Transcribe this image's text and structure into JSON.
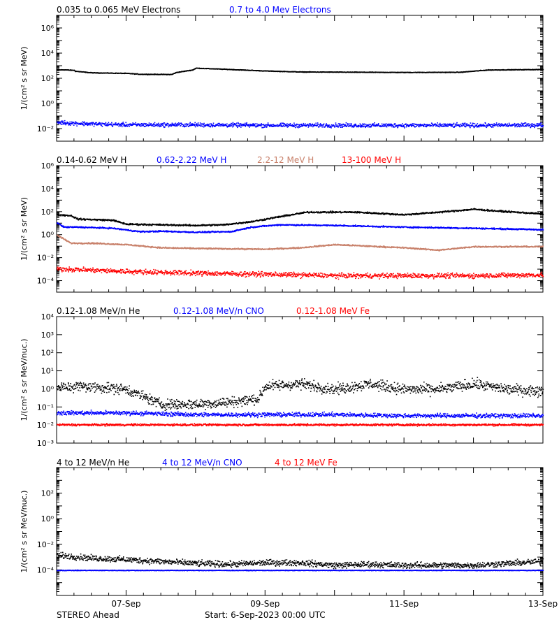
{
  "footer": {
    "left": "STEREO Ahead",
    "start": "Start:  6-Sep-2023 00:00 UTC"
  },
  "colors": {
    "black": "#000000",
    "blue": "#0000ff",
    "tan": "#c8806a",
    "red": "#ff0000"
  },
  "chart_data": [
    {
      "type": "scatter",
      "log_y": true,
      "ylabel": "1/(cm² s sr MeV)",
      "ylim": [
        0.001,
        10000000
      ],
      "yticks": [
        {
          "v": 0.01,
          "label": "10⁻²"
        },
        {
          "v": 1,
          "label": "10⁰"
        },
        {
          "v": 100,
          "label": "10²"
        },
        {
          "v": 10000,
          "label": "10⁴"
        },
        {
          "v": 1000000,
          "label": "10⁶"
        }
      ],
      "series": [
        {
          "name": "0.035 to 0.065 MeV Electrons",
          "color": "#000000",
          "scatter": 0.02,
          "x": [
            0,
            0.1,
            0.25,
            0.26,
            0.5,
            1,
            1.2,
            1.65,
            1.72,
            1.95,
            2.0,
            2.5,
            3.0,
            3.5,
            5,
            5.8,
            6.2,
            7
          ],
          "y": [
            500,
            520,
            470,
            400,
            300,
            270,
            230,
            220,
            320,
            500,
            700,
            550,
            420,
            350,
            320,
            330,
            500,
            550
          ]
        },
        {
          "name": "0.7 to 4.0 Mev Electrons",
          "color": "#0000ff",
          "scatter": 0.14,
          "x": [
            0,
            0.2,
            0.6,
            1,
            2,
            3,
            4,
            5,
            6,
            7
          ],
          "y": [
            0.035,
            0.03,
            0.025,
            0.022,
            0.022,
            0.02,
            0.02,
            0.02,
            0.02,
            0.021
          ]
        }
      ]
    },
    {
      "type": "scatter",
      "log_y": true,
      "ylabel": "1/(cm² s sr MeV)",
      "ylim": [
        1e-05,
        1000000
      ],
      "yticks": [
        {
          "v": 0.0001,
          "label": "10⁻⁴"
        },
        {
          "v": 0.01,
          "label": "10⁻²"
        },
        {
          "v": 1,
          "label": "10⁰"
        },
        {
          "v": 100,
          "label": "10²"
        },
        {
          "v": 10000,
          "label": "10⁴"
        },
        {
          "v": 1000000,
          "label": "10⁶"
        }
      ],
      "series": [
        {
          "name": "0.14-0.62 MeV H",
          "color": "#000000",
          "scatter": 0.06,
          "x": [
            0,
            0.2,
            0.3,
            0.8,
            1.0,
            1.5,
            2.0,
            2.4,
            2.8,
            3.2,
            3.6,
            4.3,
            5.0,
            5.5,
            6.0,
            6.3,
            6.6,
            7
          ],
          "y": [
            60,
            50,
            25,
            20,
            9,
            8,
            7,
            8,
            15,
            40,
            100,
            100,
            60,
            100,
            180,
            130,
            100,
            70
          ]
        },
        {
          "name": "0.62-2.22 MeV H",
          "color": "#0000ff",
          "scatter": 0.05,
          "x": [
            0,
            0.1,
            0.3,
            0.8,
            1.2,
            1.5,
            2.0,
            2.5,
            2.8,
            3.2,
            4.0,
            5.0,
            6.0,
            7
          ],
          "y": [
            12,
            5,
            5,
            4,
            2,
            2.2,
            1.8,
            2,
            5,
            8,
            7,
            5,
            4,
            3
          ]
        },
        {
          "name": "2.2-12 MeV H",
          "color": "#c8806a",
          "scatter": 0.05,
          "x": [
            0,
            0.2,
            0.5,
            1.0,
            1.5,
            2.0,
            3.0,
            3.5,
            4.0,
            5.0,
            5.5,
            6.0,
            7
          ],
          "y": [
            1,
            0.2,
            0.2,
            0.15,
            0.08,
            0.07,
            0.06,
            0.08,
            0.15,
            0.08,
            0.05,
            0.1,
            0.1
          ]
        },
        {
          "name": "13-100 MeV H",
          "color": "#ff0000",
          "scatter": 0.18,
          "x": [
            0,
            0.5,
            1.0,
            2.0,
            3.0,
            4.0,
            5.0,
            6.0,
            7
          ],
          "y": [
            0.0012,
            0.0009,
            0.0007,
            0.0005,
            0.0004,
            0.0003,
            0.0003,
            0.0003,
            0.00035
          ]
        }
      ]
    },
    {
      "type": "scatter",
      "log_y": true,
      "ylabel": "1/(cm² s sr MeV/nuc.)",
      "ylim": [
        0.001,
        10000
      ],
      "yticks": [
        {
          "v": 0.001,
          "label": "10⁻³"
        },
        {
          "v": 0.01,
          "label": "10⁻²"
        },
        {
          "v": 0.1,
          "label": "10⁻¹"
        },
        {
          "v": 1,
          "label": "10⁰"
        },
        {
          "v": 10,
          "label": "10¹"
        },
        {
          "v": 100,
          "label": "10²"
        },
        {
          "v": 1000,
          "label": "10³"
        },
        {
          "v": 10000,
          "label": "10⁴"
        }
      ],
      "series": [
        {
          "name": "0.12-1.08 MeV/n He",
          "color": "#000000",
          "scatter": 0.25,
          "x": [
            0,
            0.3,
            0.8,
            1.0,
            1.5,
            2.0,
            2.5,
            2.9,
            3.0,
            3.5,
            4.0,
            4.5,
            5.0,
            5.5,
            6.0,
            6.5,
            7
          ],
          "y": [
            1.2,
            1.5,
            1.2,
            1.0,
            0.15,
            0.15,
            0.2,
            0.3,
            1.5,
            2.0,
            1.0,
            2.0,
            1.0,
            1.0,
            2.0,
            1.0,
            0.8
          ]
        },
        {
          "name": "0.12-1.08 MeV/n CNO",
          "color": "#0000ff",
          "scatter": 0.1,
          "x": [
            0,
            1,
            2,
            3,
            4,
            5,
            6,
            7
          ],
          "y": [
            0.05,
            0.05,
            0.04,
            0.04,
            0.04,
            0.035,
            0.035,
            0.035
          ]
        },
        {
          "name": "0.12-1.08 MeV Fe",
          "color": "#ff0000",
          "scatter": 0.05,
          "x": [
            0,
            7
          ],
          "y": [
            0.011,
            0.011
          ]
        }
      ]
    },
    {
      "type": "scatter",
      "log_y": true,
      "ylabel": "1/(cm² s sr MeV/nuc.)",
      "ylim": [
        1e-06,
        10000
      ],
      "yticks": [
        {
          "v": 0.0001,
          "label": "10⁻⁴"
        },
        {
          "v": 0.01,
          "label": "10⁻²"
        },
        {
          "v": 1,
          "label": "10⁰"
        },
        {
          "v": 100,
          "label": "10²"
        }
      ],
      "series": [
        {
          "name": "4 to 12 MeV/n He",
          "color": "#000000",
          "scatter": 0.2,
          "x": [
            0,
            0.5,
            1.0,
            1.5,
            2.0,
            2.5,
            3.0,
            3.5,
            4.0,
            4.5,
            5.0,
            6.0,
            7
          ],
          "y": [
            0.0015,
            0.0009,
            0.0007,
            0.0005,
            0.00035,
            0.0003,
            0.0004,
            0.0004,
            0.00025,
            0.0003,
            0.00025,
            0.00025,
            0.0005
          ]
        },
        {
          "name": "4 to 12 MeV/n CNO",
          "color": "#0000ff",
          "scatter": 0.02,
          "x": [
            0,
            7
          ],
          "y": [
            0.0001,
            0.0001
          ]
        },
        {
          "name": "4 to 12 MeV Fe",
          "color": "#ff0000",
          "scatter": 0.0,
          "x": [
            0,
            7
          ],
          "y": [
            1e-06,
            1e-06
          ]
        }
      ]
    }
  ],
  "xaxis": {
    "range_days": [
      0,
      7
    ],
    "tick_labels": [
      "07-Sep",
      "09-Sep",
      "11-Sep",
      "13-Sep"
    ],
    "tick_days": [
      1,
      3,
      5,
      7
    ]
  }
}
